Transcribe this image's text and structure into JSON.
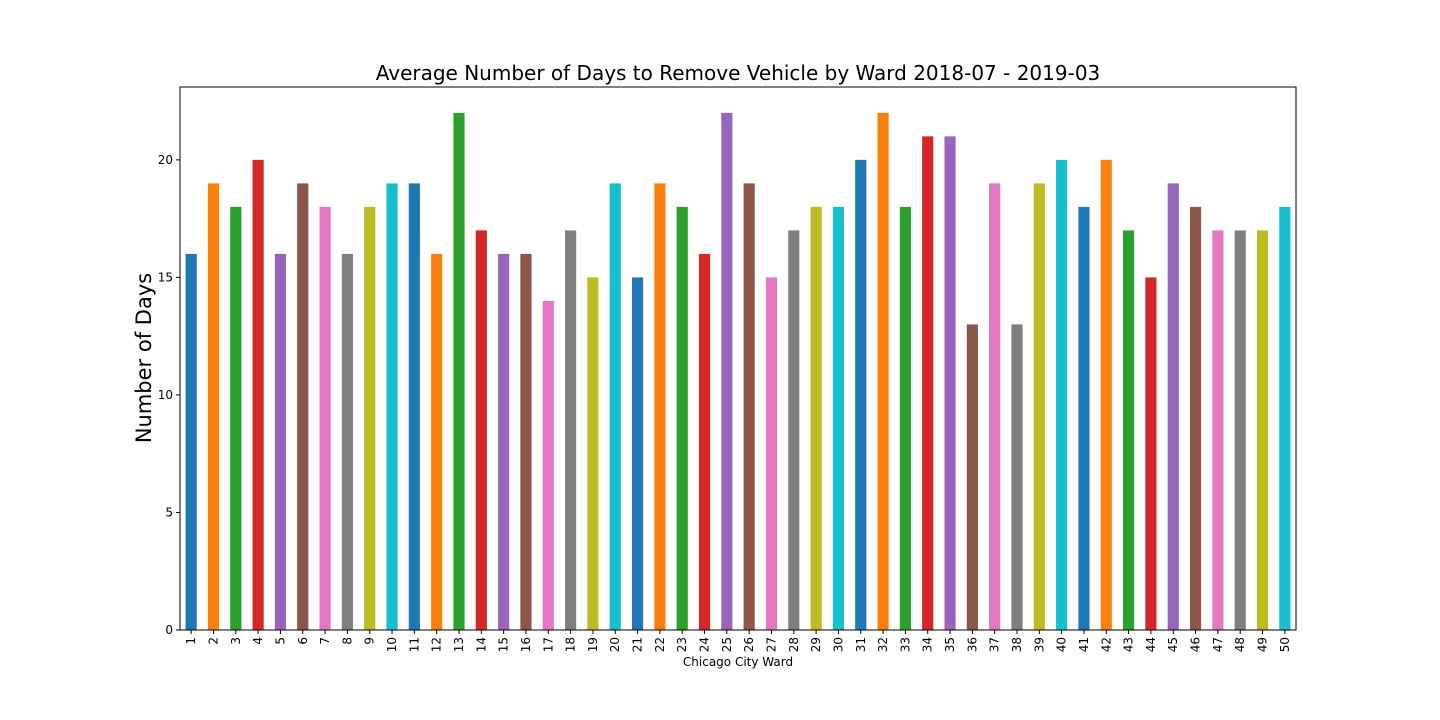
{
  "chart_data": {
    "type": "bar",
    "title": "Average Number of Days to Remove Vehicle by Ward 2018-07 - 2019-03",
    "xlabel": "Chicago City Ward",
    "ylabel": "Number of Days",
    "ylim": [
      0,
      23.1
    ],
    "yticks": [
      0,
      5,
      10,
      15,
      20
    ],
    "grid": false,
    "legend": "none",
    "categories": [
      "1",
      "2",
      "3",
      "4",
      "5",
      "6",
      "7",
      "8",
      "9",
      "10",
      "11",
      "12",
      "13",
      "14",
      "15",
      "16",
      "17",
      "18",
      "19",
      "20",
      "21",
      "22",
      "23",
      "24",
      "25",
      "26",
      "27",
      "28",
      "29",
      "30",
      "31",
      "32",
      "33",
      "34",
      "35",
      "36",
      "37",
      "38",
      "39",
      "40",
      "41",
      "42",
      "43",
      "44",
      "45",
      "46",
      "47",
      "48",
      "49",
      "50"
    ],
    "values": [
      16,
      19,
      18,
      20,
      16,
      19,
      18,
      16,
      18,
      19,
      19,
      16,
      22,
      17,
      16,
      16,
      14,
      17,
      15,
      19,
      15,
      19,
      18,
      16,
      22,
      19,
      15,
      17,
      18,
      18,
      20,
      22,
      18,
      21,
      21,
      13,
      19,
      13,
      19,
      20,
      18,
      20,
      17,
      15,
      19,
      18,
      17,
      17,
      17,
      18
    ],
    "colors": [
      "#1f77b4",
      "#ff7f0e",
      "#2ca02c",
      "#d62728",
      "#9467bd",
      "#8c564b",
      "#e377c2",
      "#7f7f7f",
      "#bcbd22",
      "#17becf"
    ]
  }
}
